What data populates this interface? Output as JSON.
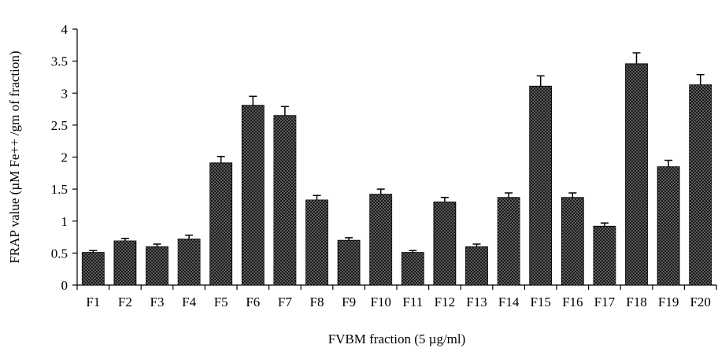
{
  "chart_data": {
    "type": "bar",
    "title": "",
    "xlabel": "FVBM fraction (5 µg/ml)",
    "ylabel": "FRAP value (µM Fe++ /gm of fraction)",
    "categories": [
      "F1",
      "F2",
      "F3",
      "F4",
      "F5",
      "F6",
      "F7",
      "F8",
      "F9",
      "F10",
      "F11",
      "F12",
      "F13",
      "F14",
      "F15",
      "F16",
      "F17",
      "F18",
      "F19",
      "F20"
    ],
    "series": [
      {
        "values": [
          0.51,
          0.69,
          0.6,
          0.72,
          1.91,
          2.81,
          2.65,
          1.33,
          0.7,
          1.42,
          0.51,
          1.3,
          0.6,
          1.37,
          3.11,
          1.37,
          0.92,
          3.46,
          1.85,
          3.13
        ],
        "errors": [
          0.03,
          0.04,
          0.04,
          0.06,
          0.1,
          0.14,
          0.14,
          0.07,
          0.04,
          0.08,
          0.03,
          0.07,
          0.04,
          0.07,
          0.16,
          0.07,
          0.05,
          0.17,
          0.1,
          0.16
        ]
      }
    ],
    "ylim": [
      0,
      4
    ],
    "yticks": [
      "0",
      "0.5",
      "1",
      "1.5",
      "2",
      "2.5",
      "3",
      "3.5",
      "4"
    ],
    "grid": false,
    "legend": "none",
    "colors": {
      "bar_fill": "#1a1a1a",
      "bar_dots": "#ffffff",
      "axis": "#000000"
    }
  }
}
